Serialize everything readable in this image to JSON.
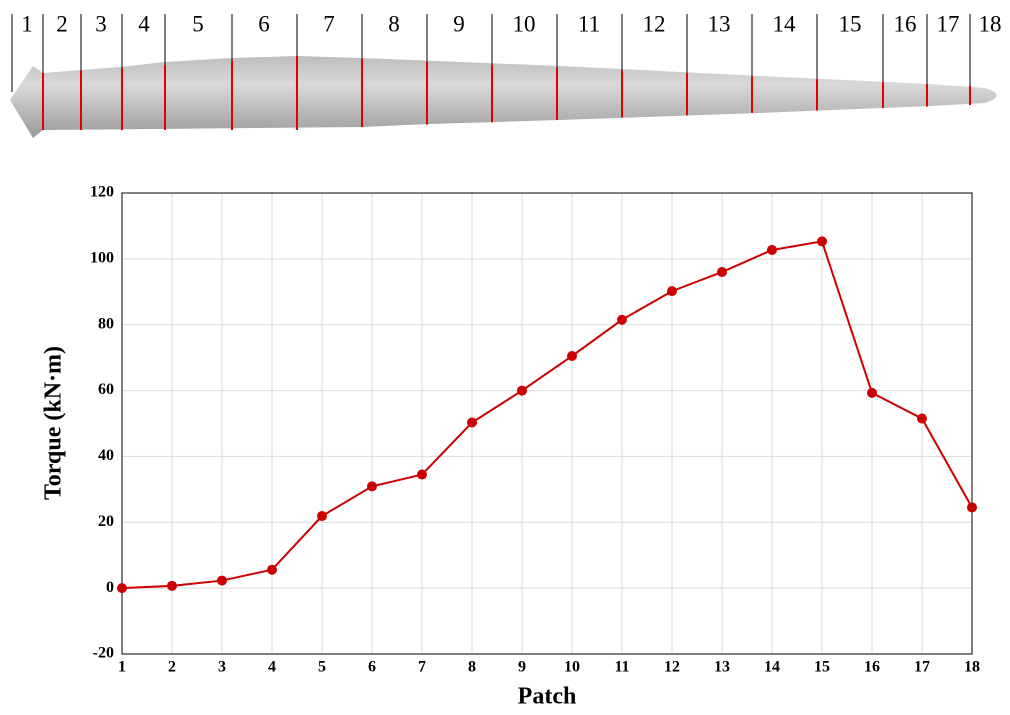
{
  "chart_data": {
    "type": "line",
    "xlabel": "Patch",
    "ylabel": "Torque (kN·m)",
    "x": [
      1,
      2,
      3,
      4,
      5,
      6,
      7,
      8,
      9,
      10,
      11,
      12,
      13,
      14,
      15,
      16,
      17,
      18
    ],
    "series": [
      {
        "color": "#cc0000",
        "values": [
          0,
          0.7,
          2.3,
          5.6,
          21.9,
          30.9,
          34.5,
          50.3,
          60,
          70.5,
          81.5,
          90.2,
          96,
          102.7,
          105.3,
          59.3,
          51.5,
          24.5
        ]
      }
    ],
    "xlim": [
      1,
      18
    ],
    "xticks": [
      1,
      2,
      3,
      4,
      5,
      6,
      7,
      8,
      9,
      10,
      11,
      12,
      13,
      14,
      15,
      16,
      17,
      18
    ],
    "ylim": [
      -20,
      120
    ],
    "yticks": [
      -20,
      0,
      20,
      40,
      60,
      80,
      100,
      120
    ],
    "grid": true
  }
}
